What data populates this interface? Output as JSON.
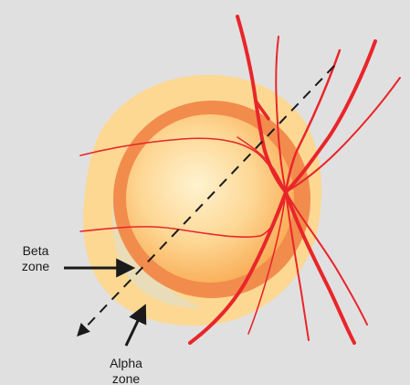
{
  "labels": {
    "beta_line1": "Beta",
    "beta_line2": "zone",
    "alpha_line1": "Alpha",
    "alpha_line2": "zone"
  },
  "colors": {
    "background": "#e1e0e0",
    "outer_halo": "#fcd893",
    "beta_zone": "#e8ddb8",
    "rim": "#f28c4d",
    "disc_center": "#fff3d0",
    "disc_edge": "#fbb85e",
    "vessel": "#e8262a",
    "arrow": "#1a1a1a"
  }
}
